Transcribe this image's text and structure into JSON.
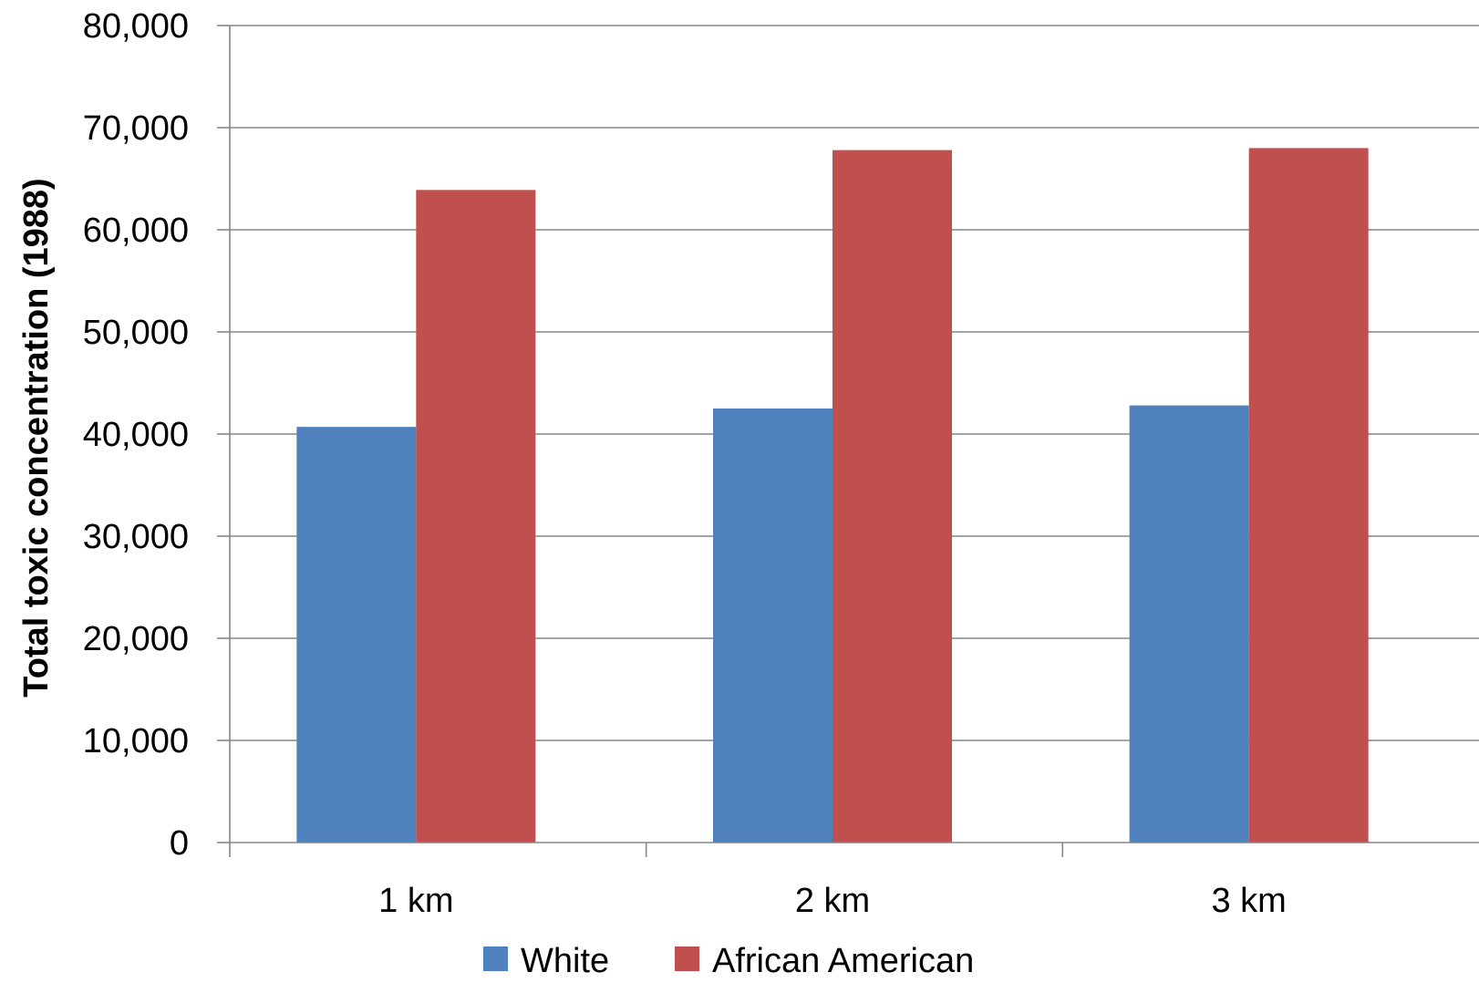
{
  "chart_data": {
    "type": "bar",
    "title": "",
    "xlabel": "",
    "ylabel": "Total toxic concentration (1988)",
    "categories": [
      "1 km",
      "2 km",
      "3 km"
    ],
    "series": [
      {
        "name": "White",
        "color": "#4F81BD",
        "values": [
          40700,
          42500,
          42800
        ]
      },
      {
        "name": "African American",
        "color": "#C0504D",
        "values": [
          63900,
          67800,
          68000
        ]
      }
    ],
    "ylim": [
      0,
      80000
    ],
    "yticks": [
      0,
      10000,
      20000,
      30000,
      40000,
      50000,
      60000,
      70000,
      80000
    ],
    "ytick_labels": [
      "0",
      "10,000",
      "20,000",
      "30,000",
      "40,000",
      "50,000",
      "60,000",
      "70,000",
      "80,000"
    ],
    "grid": true,
    "grid_color": "#868686",
    "legend_position": "bottom"
  }
}
